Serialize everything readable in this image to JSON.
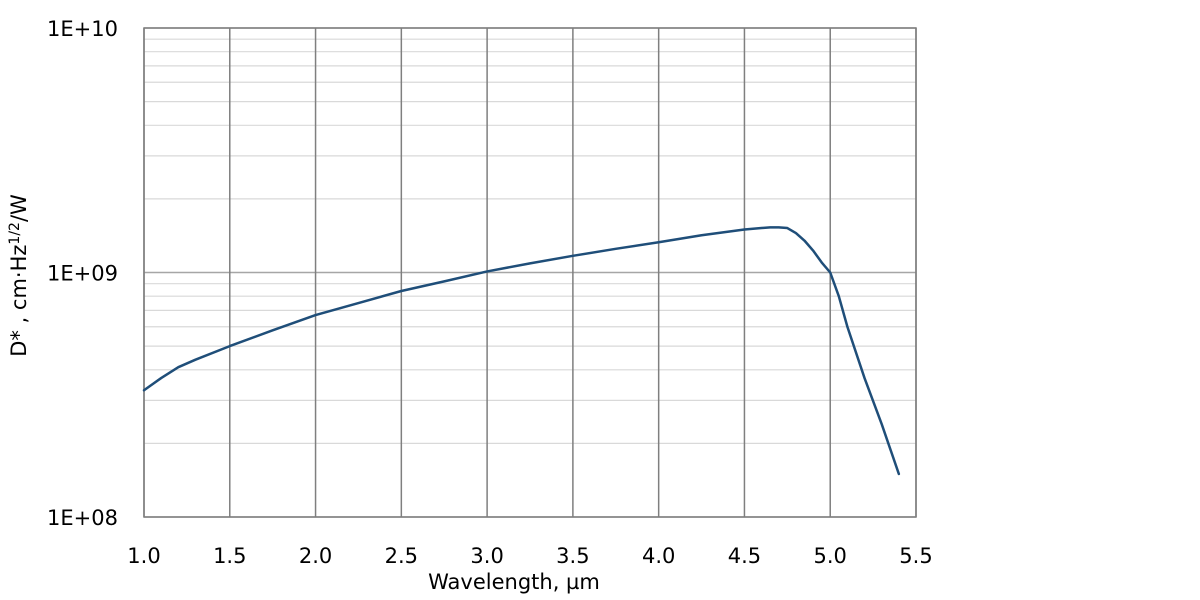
{
  "chart_data": {
    "type": "line",
    "xlabel": "Wavelength, µm",
    "ylabel": {
      "main": "D* , cm",
      "dot": "·",
      "hz": "Hz",
      "exp": "1/2",
      "tail": "/W"
    },
    "xlim": [
      1.0,
      5.5
    ],
    "ylim": [
      100000000,
      10000000000
    ],
    "y_scale": "log",
    "x_ticks": [
      1.0,
      1.5,
      2.0,
      2.5,
      3.0,
      3.5,
      4.0,
      4.5,
      5.0,
      5.5
    ],
    "x_tick_labels": [
      "1.0",
      "1.5",
      "2.0",
      "2.5",
      "3.0",
      "3.5",
      "4.0",
      "4.5",
      "5.0",
      "5.5"
    ],
    "y_ticks": [
      100000000,
      1000000000,
      10000000000
    ],
    "y_tick_labels": [
      "1E+08",
      "1E+09",
      "1E+10"
    ],
    "grid": true,
    "minor_grid": true,
    "line_color": "#1f4e79",
    "series": [
      {
        "x": [
          1.0,
          1.1,
          1.2,
          1.3,
          1.5,
          1.75,
          2.0,
          2.25,
          2.5,
          2.75,
          3.0,
          3.25,
          3.5,
          3.75,
          4.0,
          4.25,
          4.5,
          4.6,
          4.65,
          4.7,
          4.75,
          4.8,
          4.85,
          4.9,
          4.95,
          5.0,
          5.05,
          5.1,
          5.2,
          5.3,
          5.4
        ],
        "y": [
          330000000,
          370000000,
          410000000,
          440000000,
          500000000,
          580000000,
          670000000,
          750000000,
          840000000,
          920000000,
          1010000000,
          1090000000,
          1170000000,
          1250000000,
          1330000000,
          1420000000,
          1500000000,
          1520000000,
          1530000000,
          1530000000,
          1520000000,
          1450000000,
          1350000000,
          1230000000,
          1100000000,
          1000000000,
          800000000,
          600000000,
          370000000,
          240000000,
          150000000
        ]
      }
    ]
  }
}
